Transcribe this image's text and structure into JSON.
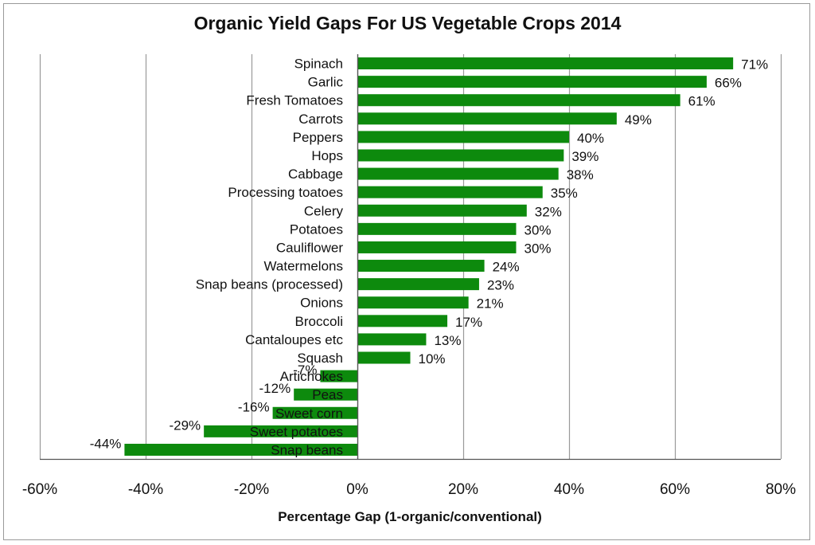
{
  "chart_data": {
    "type": "bar",
    "orientation": "horizontal",
    "title": "Organic Yield Gaps For US Vegetable Crops 2014",
    "xlabel": "Percentage Gap (1-organic/conventional)",
    "ylabel": "",
    "xlim": [
      -0.6,
      0.8
    ],
    "xticks": [
      -0.6,
      -0.4,
      -0.2,
      0,
      0.2,
      0.4,
      0.6,
      0.8
    ],
    "xtick_labels": [
      "-60%",
      "-40%",
      "-20%",
      "0%",
      "20%",
      "40%",
      "60%",
      "80%"
    ],
    "grid": "vertical",
    "bar_color": "#0d8a0d",
    "categories": [
      "Spinach",
      "Garlic",
      "Fresh Tomatoes",
      "Carrots",
      "Peppers",
      "Hops",
      "Cabbage",
      "Processing toatoes",
      "Celery",
      "Potatoes",
      "Cauliflower",
      "Watermelons",
      "Snap beans (processed)",
      "Onions",
      "Broccoli",
      "Cantaloupes etc",
      "Squash",
      "Artichokes",
      "Peas",
      "Sweet corn",
      "Sweet potatoes",
      "Snap beans"
    ],
    "values": [
      0.71,
      0.66,
      0.61,
      0.49,
      0.4,
      0.39,
      0.38,
      0.35,
      0.32,
      0.3,
      0.3,
      0.24,
      0.23,
      0.21,
      0.17,
      0.13,
      0.1,
      -0.07,
      -0.12,
      -0.16,
      -0.29,
      -0.44
    ],
    "value_labels": [
      "71%",
      "66%",
      "61%",
      "49%",
      "40%",
      "39%",
      "38%",
      "35%",
      "32%",
      "30%",
      "30%",
      "24%",
      "23%",
      "21%",
      "17%",
      "13%",
      "10%",
      "-7%",
      "-12%",
      "-16%",
      "-29%",
      "-44%"
    ]
  }
}
